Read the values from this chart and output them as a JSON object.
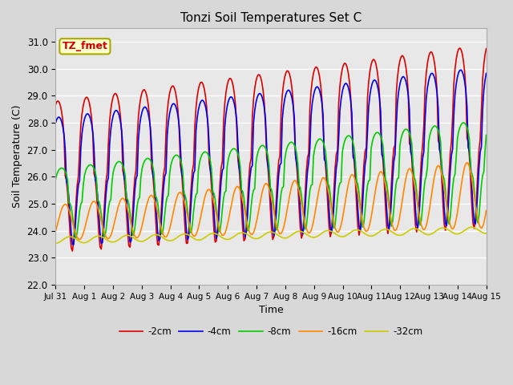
{
  "title": "Tonzi Soil Temperatures Set C",
  "xlabel": "Time",
  "ylabel": "Soil Temperature (C)",
  "ylim": [
    22.0,
    31.5
  ],
  "yticks": [
    22.0,
    23.0,
    24.0,
    25.0,
    26.0,
    27.0,
    28.0,
    29.0,
    30.0,
    31.0
  ],
  "xtick_labels": [
    "Jul 31",
    "Aug 1",
    "Aug 2",
    "Aug 3",
    "Aug 4",
    "Aug 5",
    "Aug 6",
    "Aug 7",
    "Aug 8",
    "Aug 9",
    "Aug 10",
    "Aug 11",
    "Aug 12",
    "Aug 13",
    "Aug 14",
    "Aug 15"
  ],
  "colors": {
    "-2cm": "#dd0000",
    "-4cm": "#0000ee",
    "-8cm": "#00cc00",
    "-16cm": "#ff8800",
    "-32cm": "#cccc00"
  },
  "line_width": 1.2,
  "annotation_text": "TZ_fmet",
  "annotation_color": "#cc0000",
  "annotation_bg": "#ffffcc",
  "annotation_border": "#aaaa00",
  "plot_bg": "#e8e8e8",
  "fig_bg": "#d8d8d8"
}
